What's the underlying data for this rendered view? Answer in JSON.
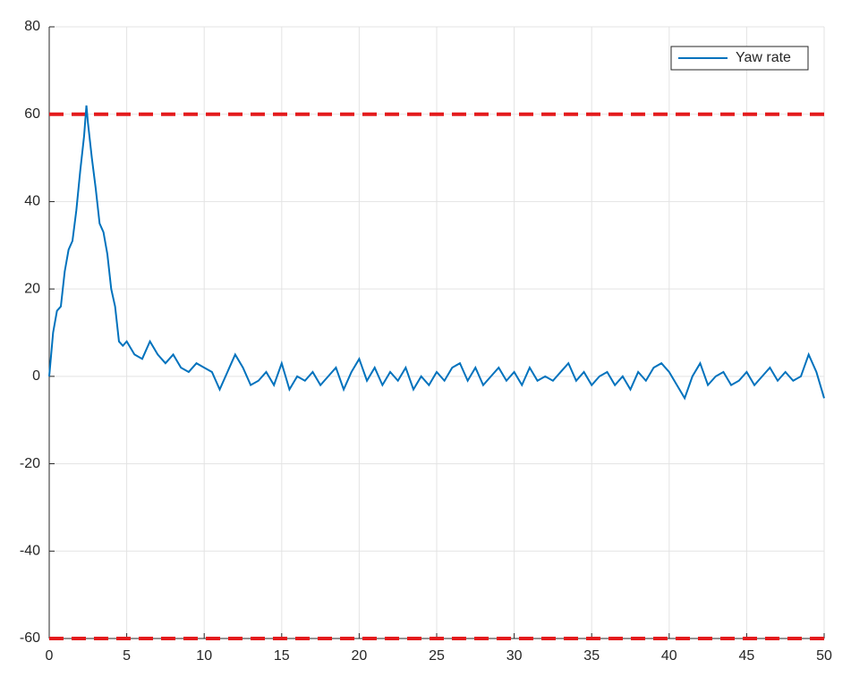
{
  "chart_data": {
    "type": "line",
    "x": [
      0,
      0.25,
      0.5,
      0.75,
      1,
      1.25,
      1.5,
      1.75,
      2,
      2.25,
      2.4,
      2.5,
      2.75,
      3,
      3.25,
      3.5,
      3.75,
      4,
      4.25,
      4.5,
      4.75,
      5,
      5.5,
      6,
      6.5,
      7,
      7.5,
      8,
      8.5,
      9,
      9.5,
      10,
      10.5,
      11,
      11.5,
      12,
      12.5,
      13,
      13.5,
      14,
      14.5,
      15,
      15.5,
      16,
      16.5,
      17,
      17.5,
      18,
      18.5,
      19,
      19.5,
      20,
      20.5,
      21,
      21.5,
      22,
      22.5,
      23,
      23.5,
      24,
      24.5,
      25,
      25.5,
      26,
      26.5,
      27,
      27.5,
      28,
      28.5,
      29,
      29.5,
      30,
      30.5,
      31,
      31.5,
      32,
      32.5,
      33,
      33.5,
      34,
      34.5,
      35,
      35.5,
      36,
      36.5,
      37,
      37.5,
      38,
      38.5,
      39,
      39.5,
      40,
      40.5,
      41,
      41.5,
      42,
      42.5,
      43,
      43.5,
      44,
      44.5,
      45,
      45.5,
      46,
      46.5,
      47,
      47.5,
      48,
      48.5,
      49,
      49.5,
      50
    ],
    "series": [
      {
        "name": "Yaw rate",
        "color": "#0072bd",
        "values": [
          0,
          10,
          15,
          16,
          24,
          29,
          31,
          38,
          47,
          55,
          62,
          58,
          50,
          43,
          35,
          33,
          28,
          20,
          16,
          8,
          7,
          8,
          5,
          4,
          8,
          5,
          3,
          5,
          2,
          1,
          3,
          2,
          1,
          -3,
          1,
          5,
          2,
          -2,
          -1,
          1,
          -2,
          3,
          -3,
          0,
          -1,
          1,
          -2,
          0,
          2,
          -3,
          1,
          4,
          -1,
          2,
          -2,
          1,
          -1,
          2,
          -3,
          0,
          -2,
          1,
          -1,
          2,
          3,
          -1,
          2,
          -2,
          0,
          2,
          -1,
          1,
          -2,
          2,
          -1,
          0,
          -1,
          1,
          3,
          -1,
          1,
          -2,
          0,
          1,
          -2,
          0,
          -3,
          1,
          -1,
          2,
          3,
          1,
          -2,
          -5,
          0,
          3,
          -2,
          0,
          1,
          -2,
          -1,
          1,
          -2,
          0,
          2,
          -1,
          1,
          -1,
          0,
          5,
          1,
          -5
        ]
      }
    ],
    "reference_lines": [
      {
        "value": 60,
        "color": "#e41a1c"
      },
      {
        "value": -60,
        "color": "#e41a1c"
      }
    ],
    "xlim": [
      0,
      50
    ],
    "xticks": [
      0,
      5,
      10,
      15,
      20,
      25,
      30,
      35,
      40,
      45,
      50
    ],
    "ylim": [
      -60,
      80
    ],
    "yticks": [
      -60,
      -40,
      -20,
      0,
      20,
      40,
      60,
      80
    ],
    "grid": true,
    "legend": "top-right"
  }
}
